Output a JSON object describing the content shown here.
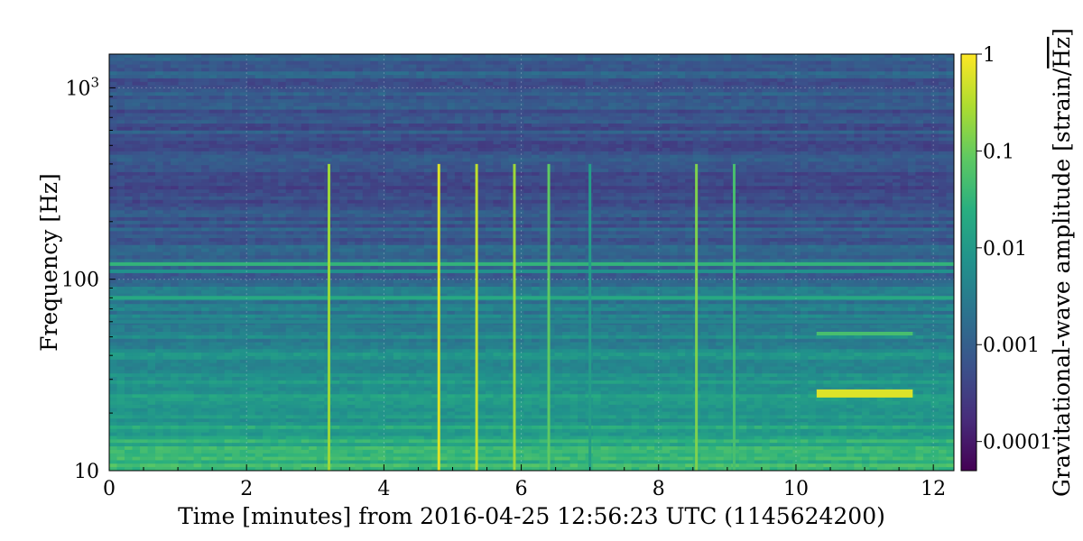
{
  "chart_data": {
    "type": "heatmap",
    "title": "",
    "xlabel": "Time [minutes] from 2016-04-25 12:56:23 UTC (1145624200)",
    "ylabel": "Frequency [Hz]",
    "x_range_minutes": [
      0,
      12.3
    ],
    "y_range_hz": [
      10,
      1500
    ],
    "y_scale": "log",
    "grid": true,
    "x_ticks": [
      {
        "value": 0,
        "label": "0"
      },
      {
        "value": 2,
        "label": "2"
      },
      {
        "value": 4,
        "label": "4"
      },
      {
        "value": 6,
        "label": "6"
      },
      {
        "value": 8,
        "label": "8"
      },
      {
        "value": 10,
        "label": "10"
      },
      {
        "value": 12,
        "label": "12"
      }
    ],
    "y_ticks": [
      {
        "value": 10,
        "label": "10"
      },
      {
        "value": 100,
        "label": "100"
      },
      {
        "value": 1000,
        "label_base": "10",
        "label_exp": "3"
      }
    ],
    "colorbar": {
      "label_main": "Gravitational-wave amplitude [strain/",
      "label_sqrt": "Hz",
      "label_end": "]",
      "scale": "log",
      "range": [
        5e-05,
        1
      ],
      "colormap": "viridis",
      "ticks": [
        {
          "value": 1,
          "label": "1"
        },
        {
          "value": 0.1,
          "label": "0.1"
        },
        {
          "value": 0.01,
          "label": "0.01"
        },
        {
          "value": 0.001,
          "label": "0.001"
        },
        {
          "value": 0.0001,
          "label": "0.0001"
        }
      ]
    },
    "features": {
      "horizontal_lines": [
        {
          "freq_hz": 120,
          "level": 0.65,
          "start_min": 0,
          "end_min": 12.3
        },
        {
          "freq_hz": 80,
          "level": 0.6,
          "start_min": 0,
          "end_min": 12.3
        },
        {
          "freq_hz": 110,
          "level": 0.5,
          "start_min": 0,
          "end_min": 12.3
        },
        {
          "freq_hz": 60,
          "level": 0.45,
          "start_min": 0,
          "end_min": 12.3
        },
        {
          "freq_hz": 52,
          "level": 0.7,
          "start_min": 10.3,
          "end_min": 11.7
        },
        {
          "freq_hz": 26,
          "level": 0.95,
          "start_min": 10.3,
          "end_min": 11.7
        }
      ],
      "vertical_glitches": [
        {
          "time_min": 3.2,
          "level": 0.85
        },
        {
          "time_min": 4.8,
          "level": 0.95
        },
        {
          "time_min": 5.35,
          "level": 0.9
        },
        {
          "time_min": 5.9,
          "level": 0.85
        },
        {
          "time_min": 6.4,
          "level": 0.75
        },
        {
          "time_min": 7.0,
          "level": 0.55
        },
        {
          "time_min": 8.55,
          "level": 0.8
        },
        {
          "time_min": 9.1,
          "level": 0.7
        }
      ]
    }
  }
}
